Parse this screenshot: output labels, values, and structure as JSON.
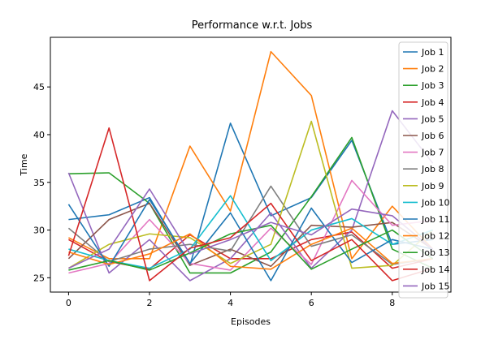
{
  "chart_data": {
    "type": "line",
    "title": "Performance w.r.t. Jobs",
    "xlabel": "Episodes",
    "ylabel": "Time",
    "x": [
      0,
      1,
      2,
      3,
      4,
      5,
      6,
      7,
      8,
      9
    ],
    "xlim": [
      -0.45,
      9.45
    ],
    "ylim": [
      23.5,
      50.2
    ],
    "xticks": [
      0,
      2,
      4,
      6,
      8
    ],
    "yticks": [
      25,
      30,
      35,
      40,
      45
    ],
    "xtick_labels": [
      "0",
      "2",
      "4",
      "6",
      "8"
    ],
    "ytick_labels": [
      "25",
      "30",
      "35",
      "40",
      "45"
    ],
    "legend_placement": "top-right",
    "grid": false,
    "series": [
      {
        "name": "Job 1",
        "color": "#1f77b4",
        "values": [
          31.1,
          31.6,
          33.4,
          26.3,
          41.2,
          31.5,
          33.4,
          39.4,
          28.5,
          29.0
        ]
      },
      {
        "name": "Job 2",
        "color": "#ff7f0e",
        "values": [
          29.2,
          27.0,
          27.0,
          38.8,
          32.0,
          48.7,
          44.1,
          27.0,
          32.5,
          28.0
        ]
      },
      {
        "name": "Job 3",
        "color": "#2ca02c",
        "values": [
          35.9,
          36.0,
          32.8,
          25.5,
          25.5,
          27.7,
          33.5,
          39.7,
          28.0,
          26.0
        ]
      },
      {
        "name": "Job 4",
        "color": "#d62728",
        "values": [
          29.0,
          26.7,
          25.9,
          29.5,
          27.0,
          27.0,
          29.0,
          29.8,
          26.0,
          27.0
        ]
      },
      {
        "name": "Job 5",
        "color": "#9467bd",
        "values": [
          36.0,
          25.5,
          29.0,
          24.7,
          27.0,
          31.8,
          26.0,
          30.0,
          42.5,
          37.0
        ]
      },
      {
        "name": "Job 6",
        "color": "#8c564b",
        "values": [
          27.0,
          31.1,
          32.8,
          26.3,
          28.0,
          26.2,
          30.5,
          30.3,
          30.8,
          28.0
        ]
      },
      {
        "name": "Job 7",
        "color": "#e377c2",
        "values": [
          25.5,
          26.5,
          31.1,
          26.5,
          25.8,
          30.2,
          26.4,
          35.2,
          30.5,
          31.0
        ]
      },
      {
        "name": "Job 8",
        "color": "#7f7f7f",
        "values": [
          30.2,
          26.7,
          28.0,
          28.5,
          27.8,
          34.6,
          28.3,
          29.5,
          26.4,
          27.0
        ]
      },
      {
        "name": "Job 9",
        "color": "#bcbd22",
        "values": [
          26.0,
          28.5,
          29.6,
          29.2,
          26.5,
          28.5,
          41.4,
          26.0,
          26.3,
          30.0
        ]
      },
      {
        "name": "Job 10",
        "color": "#17becf",
        "values": [
          28.0,
          26.8,
          26.0,
          28.0,
          33.6,
          26.8,
          30.0,
          31.2,
          28.5,
          30.0
        ]
      },
      {
        "name": "Job 11",
        "color": "#1f77b4",
        "values": [
          32.7,
          26.2,
          33.2,
          26.5,
          31.8,
          24.7,
          32.3,
          26.6,
          29.0,
          28.0
        ]
      },
      {
        "name": "Job 12",
        "color": "#ff7f0e",
        "values": [
          27.7,
          26.4,
          27.5,
          29.6,
          26.2,
          25.9,
          28.5,
          30.2,
          26.5,
          27.0
        ]
      },
      {
        "name": "Job 13",
        "color": "#2ca02c",
        "values": [
          25.8,
          26.8,
          25.8,
          27.6,
          29.6,
          30.5,
          25.9,
          28.0,
          30.0,
          27.0
        ]
      },
      {
        "name": "Job 14",
        "color": "#d62728",
        "values": [
          27.3,
          40.7,
          24.7,
          28.1,
          29.2,
          32.8,
          26.8,
          29.0,
          24.7,
          26.0
        ]
      },
      {
        "name": "Job 15",
        "color": "#9467bd",
        "values": [
          26.0,
          28.0,
          34.3,
          27.5,
          29.0,
          30.8,
          29.5,
          32.2,
          31.5,
          28.0
        ]
      }
    ]
  }
}
